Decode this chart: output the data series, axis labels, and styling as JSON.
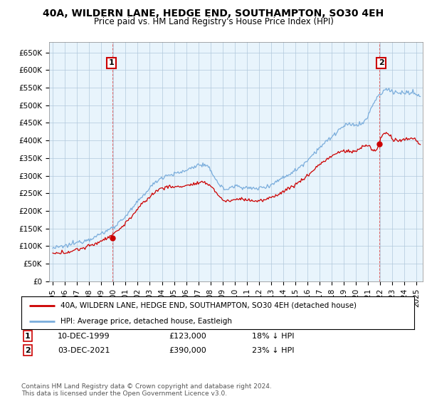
{
  "title": "40A, WILDERN LANE, HEDGE END, SOUTHAMPTON, SO30 4EH",
  "subtitle": "Price paid vs. HM Land Registry's House Price Index (HPI)",
  "ylabel_ticks": [
    "£0",
    "£50K",
    "£100K",
    "£150K",
    "£200K",
    "£250K",
    "£300K",
    "£350K",
    "£400K",
    "£450K",
    "£500K",
    "£550K",
    "£600K",
    "£650K"
  ],
  "ytick_vals": [
    0,
    50000,
    100000,
    150000,
    200000,
    250000,
    300000,
    350000,
    400000,
    450000,
    500000,
    550000,
    600000,
    650000
  ],
  "ylim": [
    0,
    680000
  ],
  "xlim_start": 1994.7,
  "xlim_end": 2025.5,
  "hpi_color": "#7aaddc",
  "hpi_fill_color": "#d0e8f5",
  "price_color": "#cc0000",
  "point1_x": 1999.92,
  "point1_y": 123000,
  "point2_x": 2021.92,
  "point2_y": 390000,
  "annotation1_label": "1",
  "annotation2_label": "2",
  "legend_line1": "40A, WILDERN LANE, HEDGE END, SOUTHAMPTON, SO30 4EH (detached house)",
  "legend_line2": "HPI: Average price, detached house, Eastleigh",
  "background_color": "#ffffff",
  "chart_bg_color": "#e8f4fc",
  "grid_color": "#b0c8dc",
  "title_fontsize": 10,
  "subtitle_fontsize": 8.5,
  "footer": "Contains HM Land Registry data © Crown copyright and database right 2024.\nThis data is licensed under the Open Government Licence v3.0."
}
